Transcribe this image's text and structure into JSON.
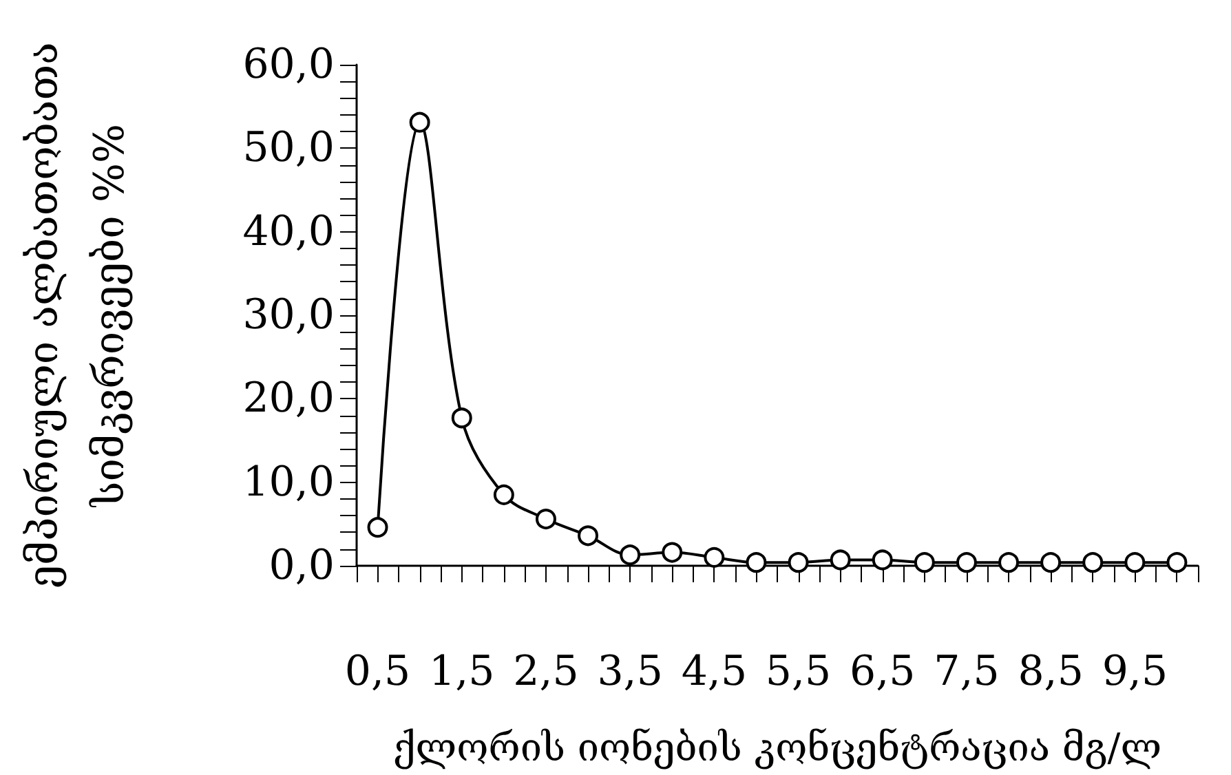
{
  "chart_data": {
    "type": "line",
    "xlabel": "ქლორის იონების კონცენტრაცია მგ/ლ",
    "ylabel": "ემპირიული ალბათობათა\nსიმკვრივეები %%",
    "x": [
      0.5,
      1.0,
      1.5,
      2.0,
      2.5,
      3.0,
      3.5,
      4.0,
      4.5,
      5.0,
      5.5,
      6.0,
      6.5,
      7.0,
      7.5,
      8.0,
      8.5,
      9.0,
      9.5,
      10.0
    ],
    "series": [
      {
        "color": "#000000",
        "values": [
          4.6,
          53.1,
          17.7,
          8.5,
          5.6,
          3.6,
          1.3,
          1.6,
          1.0,
          0.4,
          0.4,
          0.7,
          0.7,
          0.4,
          0.4,
          0.4,
          0.4,
          0.4,
          0.4,
          0.4
        ]
      }
    ],
    "xlim": [
      0.25,
      10.25
    ],
    "xticks": [
      {
        "value": 0.25,
        "label": null
      },
      {
        "value": 0.5,
        "label": "0,5"
      },
      {
        "value": 0.75,
        "label": null
      },
      {
        "value": 1.0,
        "label": null
      },
      {
        "value": 1.25,
        "label": null
      },
      {
        "value": 1.5,
        "label": "1,5"
      },
      {
        "value": 1.75,
        "label": null
      },
      {
        "value": 2.0,
        "label": null
      },
      {
        "value": 2.25,
        "label": null
      },
      {
        "value": 2.5,
        "label": "2,5"
      },
      {
        "value": 2.75,
        "label": null
      },
      {
        "value": 3.0,
        "label": null
      },
      {
        "value": 3.25,
        "label": null
      },
      {
        "value": 3.5,
        "label": "3,5"
      },
      {
        "value": 3.75,
        "label": null
      },
      {
        "value": 4.0,
        "label": null
      },
      {
        "value": 4.25,
        "label": null
      },
      {
        "value": 4.5,
        "label": "4,5"
      },
      {
        "value": 4.75,
        "label": null
      },
      {
        "value": 5.0,
        "label": null
      },
      {
        "value": 5.25,
        "label": null
      },
      {
        "value": 5.5,
        "label": "5,5"
      },
      {
        "value": 5.75,
        "label": null
      },
      {
        "value": 6.0,
        "label": null
      },
      {
        "value": 6.25,
        "label": null
      },
      {
        "value": 6.5,
        "label": "6,5"
      },
      {
        "value": 6.75,
        "label": null
      },
      {
        "value": 7.0,
        "label": null
      },
      {
        "value": 7.25,
        "label": null
      },
      {
        "value": 7.5,
        "label": "7,5"
      },
      {
        "value": 7.75,
        "label": null
      },
      {
        "value": 8.0,
        "label": null
      },
      {
        "value": 8.25,
        "label": null
      },
      {
        "value": 8.5,
        "label": "8,5"
      },
      {
        "value": 8.75,
        "label": null
      },
      {
        "value": 9.0,
        "label": null
      },
      {
        "value": 9.25,
        "label": null
      },
      {
        "value": 9.5,
        "label": "9,5"
      },
      {
        "value": 9.75,
        "label": null
      },
      {
        "value": 10.0,
        "label": null
      },
      {
        "value": 10.25,
        "label": null
      }
    ],
    "ylim": [
      0,
      60
    ],
    "yticks": [
      {
        "value": 0,
        "label": "0,0"
      },
      {
        "value": 2,
        "label": null
      },
      {
        "value": 4,
        "label": null
      },
      {
        "value": 6,
        "label": null
      },
      {
        "value": 8,
        "label": null
      },
      {
        "value": 10,
        "label": "10,0"
      },
      {
        "value": 12,
        "label": null
      },
      {
        "value": 14,
        "label": null
      },
      {
        "value": 16,
        "label": null
      },
      {
        "value": 18,
        "label": null
      },
      {
        "value": 20,
        "label": "20,0"
      },
      {
        "value": 22,
        "label": null
      },
      {
        "value": 24,
        "label": null
      },
      {
        "value": 26,
        "label": null
      },
      {
        "value": 28,
        "label": null
      },
      {
        "value": 30,
        "label": "30,0"
      },
      {
        "value": 32,
        "label": null
      },
      {
        "value": 34,
        "label": null
      },
      {
        "value": 36,
        "label": null
      },
      {
        "value": 38,
        "label": null
      },
      {
        "value": 40,
        "label": "40,0"
      },
      {
        "value": 42,
        "label": null
      },
      {
        "value": 44,
        "label": null
      },
      {
        "value": 46,
        "label": null
      },
      {
        "value": 48,
        "label": null
      },
      {
        "value": 50,
        "label": "50,0"
      },
      {
        "value": 52,
        "label": null
      },
      {
        "value": 54,
        "label": null
      },
      {
        "value": 56,
        "label": null
      },
      {
        "value": 58,
        "label": null
      },
      {
        "value": 60,
        "label": "60,0"
      }
    ],
    "marker": "circle",
    "line_style": "solid"
  }
}
